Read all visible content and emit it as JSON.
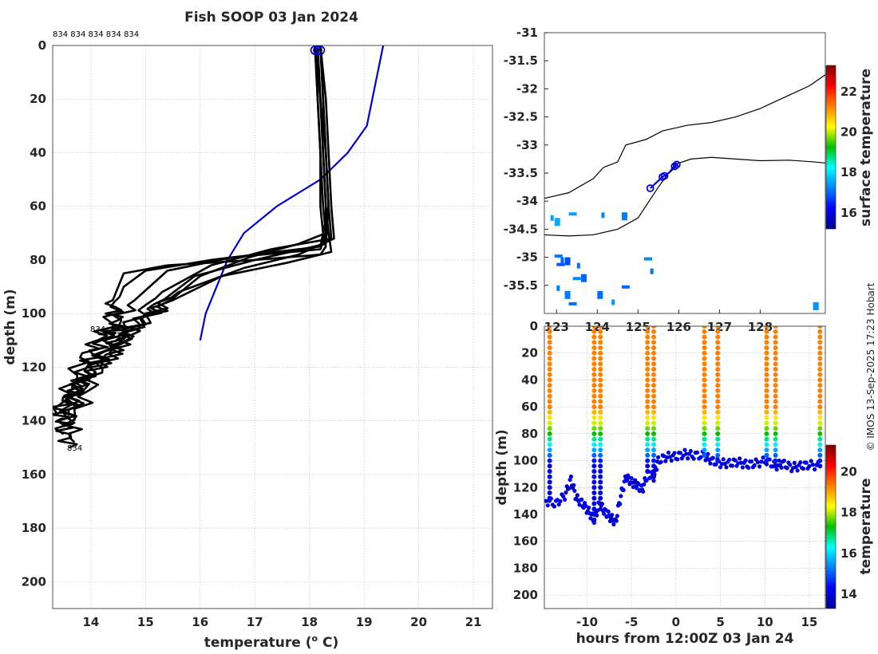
{
  "chart_data": [
    {
      "type": "line",
      "title": "Fish SOOP 03 Jan 2024",
      "xlabel": "temperature (",
      "xlabel_sup": "o",
      "xlabel_end": " C)",
      "ylabel": "depth (m)",
      "xlim": [
        13.3,
        21.35
      ],
      "ylim": [
        210,
        0
      ],
      "xticks": [
        14,
        15,
        16,
        17,
        18,
        19,
        20,
        21
      ],
      "yticks": [
        0,
        20,
        40,
        60,
        80,
        100,
        120,
        140,
        160,
        180,
        200
      ],
      "top_labels": "834 834 834 834 834",
      "profile_labels": [
        "834",
        "834",
        "834"
      ],
      "climatology": {
        "name": "climatology",
        "color": "#0000dd",
        "temp": [
          19.35,
          19.25,
          19.15,
          19.05,
          18.7,
          18.2,
          17.4,
          16.8,
          16.5,
          16.3,
          16.1,
          16.0
        ],
        "depth": [
          0,
          10,
          20,
          30,
          40,
          50,
          60,
          70,
          80,
          90,
          100,
          110
        ]
      },
      "profiles": [
        {
          "temp": [
            18.1,
            18.15,
            18.2,
            18.2,
            18.25,
            18.3,
            18.2,
            17.0,
            15.4,
            14.6,
            14.4,
            14.5,
            14.3
          ],
          "depth": [
            0,
            20,
            40,
            60,
            70,
            75,
            78,
            80,
            82,
            85,
            95,
            105,
            108
          ]
        },
        {
          "temp": [
            18.15,
            18.2,
            18.25,
            18.3,
            18.3,
            18.2,
            16.6,
            15.4,
            14.8,
            14.2,
            13.9,
            13.6,
            13.7
          ],
          "depth": [
            0,
            20,
            40,
            60,
            70,
            76,
            79,
            84,
            95,
            110,
            120,
            135,
            148
          ]
        },
        {
          "temp": [
            18.2,
            18.25,
            18.3,
            18.35,
            18.4,
            17.3,
            16.2,
            15.3,
            14.4,
            13.8,
            13.5,
            13.6
          ],
          "depth": [
            0,
            20,
            40,
            60,
            72,
            76,
            82,
            92,
            110,
            125,
            140,
            150
          ]
        },
        {
          "temp": [
            18.1,
            18.2,
            18.25,
            18.3,
            18.35,
            18.4,
            17.6,
            16.4,
            15.2,
            14.5,
            13.9,
            13.4,
            13.5
          ],
          "depth": [
            0,
            20,
            40,
            60,
            70,
            77,
            81,
            86,
            98,
            112,
            125,
            135,
            142
          ]
        },
        {
          "temp": [
            18.2,
            18.3,
            18.35,
            18.4,
            18.45,
            17.8,
            16.8,
            15.6,
            14.6,
            14.0,
            13.6
          ],
          "depth": [
            0,
            20,
            40,
            60,
            72,
            78,
            83,
            92,
            108,
            120,
            138
          ]
        },
        {
          "temp": [
            18.15,
            18.2,
            18.3,
            18.35,
            18.3,
            17.0,
            15.9,
            15.0,
            14.4,
            13.7,
            13.5
          ],
          "depth": [
            0,
            20,
            40,
            60,
            74,
            80,
            86,
            100,
            115,
            128,
            145
          ]
        },
        {
          "temp": [
            18.2,
            18.25,
            18.3,
            18.35,
            18.2,
            16.2,
            15.0,
            14.6,
            14.3,
            13.8,
            13.4
          ],
          "depth": [
            0,
            20,
            40,
            60,
            75,
            80,
            84,
            90,
            105,
            118,
            138
          ]
        },
        {
          "temp": [
            18.1,
            18.15,
            18.2,
            18.25,
            18.3,
            17.8,
            16.9,
            16.0,
            15.4,
            14.7,
            14.1,
            13.7
          ],
          "depth": [
            0,
            20,
            40,
            60,
            70,
            74,
            79,
            86,
            96,
            108,
            122,
            140
          ]
        }
      ]
    },
    {
      "type": "heatmap",
      "description_legend": "surface temperature",
      "xlim": [
        122.7,
        129.6
      ],
      "ylim": [
        -36.0,
        -31.0
      ],
      "xticks": [
        123,
        124,
        125,
        126,
        127,
        128
      ],
      "yticks": [
        -31,
        -31.5,
        -32,
        -32.5,
        -33,
        -33.5,
        -34,
        -34.5,
        -35,
        -35.5
      ],
      "colorbar_label": "surface temperature",
      "colorbar_ticks": [
        16,
        18,
        20,
        22
      ],
      "colorbar_range": [
        15.2,
        23.3
      ],
      "track": {
        "lon": [
          125.3,
          125.6,
          125.75,
          125.9,
          125.95
        ],
        "lat": [
          -33.77,
          -33.57,
          -33.5,
          -33.4,
          -33.35
        ]
      },
      "track_markers": {
        "lon": [
          125.3,
          125.6,
          125.65,
          125.9,
          125.95
        ],
        "lat": [
          -33.77,
          -33.57,
          -33.55,
          -33.38,
          -33.35
        ]
      },
      "sst_patches": [
        {
          "lon": 122.85,
          "lat": -34.25,
          "t": 17.5
        },
        {
          "lon": 122.95,
          "lat": -34.3,
          "t": 17.6
        },
        {
          "lon": 123.3,
          "lat": -34.2,
          "t": 17.5
        },
        {
          "lon": 124.1,
          "lat": -34.2,
          "t": 17.3
        },
        {
          "lon": 124.6,
          "lat": -34.2,
          "t": 17.2
        },
        {
          "lon": 122.95,
          "lat": -34.95,
          "t": 17.2
        },
        {
          "lon": 123.1,
          "lat": -35.0,
          "t": 17.0
        },
        {
          "lon": 123.2,
          "lat": -35.0,
          "t": 16.8
        },
        {
          "lon": 123.0,
          "lat": -35.1,
          "t": 16.9
        },
        {
          "lon": 123.5,
          "lat": -35.1,
          "t": 17.1
        },
        {
          "lon": 123.6,
          "lat": -35.3,
          "t": 17.0
        },
        {
          "lon": 123.4,
          "lat": -35.35,
          "t": 17.3
        },
        {
          "lon": 123.0,
          "lat": -35.5,
          "t": 17.2
        },
        {
          "lon": 123.2,
          "lat": -35.6,
          "t": 17.2
        },
        {
          "lon": 123.3,
          "lat": -35.8,
          "t": 17.1
        },
        {
          "lon": 124.35,
          "lat": -35.75,
          "t": 17.4
        },
        {
          "lon": 124.0,
          "lat": -35.6,
          "t": 17.1
        },
        {
          "lon": 125.15,
          "lat": -35.0,
          "t": 17.3
        },
        {
          "lon": 125.3,
          "lat": -35.2,
          "t": 17.1
        },
        {
          "lon": 129.3,
          "lat": -35.8,
          "t": 17.4
        },
        {
          "lon": 124.6,
          "lat": -35.5,
          "t": 17.0
        }
      ],
      "coast_north": {
        "lon": [
          122.7,
          123.3,
          123.9,
          124.15,
          124.5,
          124.7,
          125.2,
          125.6,
          126.2,
          126.8,
          127.4,
          128.0,
          128.6,
          129.2,
          129.6
        ],
        "lat": [
          -33.95,
          -33.85,
          -33.6,
          -33.4,
          -33.3,
          -33.0,
          -32.9,
          -32.75,
          -32.65,
          -32.6,
          -32.5,
          -32.35,
          -32.15,
          -31.95,
          -31.75
        ]
      },
      "coast_south": {
        "lon": [
          122.7,
          123.3,
          123.9,
          124.5,
          125.0,
          125.5,
          125.9,
          126.3,
          126.8,
          127.4,
          128.0,
          128.7,
          129.3,
          129.6
        ],
        "lat": [
          -34.6,
          -34.62,
          -34.6,
          -34.5,
          -34.3,
          -33.75,
          -33.35,
          -33.25,
          -33.22,
          -33.25,
          -33.28,
          -33.27,
          -33.3,
          -33.32
        ]
      }
    },
    {
      "type": "scatter",
      "xlabel": "hours from 12:00Z 03 Jan 24",
      "ylabel": "depth (m)",
      "xlim": [
        -14.8,
        16.8
      ],
      "ylim": [
        210,
        0
      ],
      "xticks": [
        -10,
        -5,
        0,
        5,
        10,
        15
      ],
      "yticks": [
        0,
        20,
        40,
        60,
        80,
        100,
        120,
        140,
        160,
        180,
        200
      ],
      "colorbar_label": "temperature",
      "colorbar_ticks": [
        14,
        16,
        18,
        20
      ],
      "colorbar_range": [
        13.3,
        21.3
      ],
      "casts_hours": [
        -14.2,
        -9.2,
        -8.5,
        -3.2,
        -2.5,
        3.2,
        4.7,
        10.2,
        11.2,
        16.2
      ],
      "seafloor": {
        "hours": [
          -14.6,
          -13.5,
          -12.5,
          -11.8,
          -11.2,
          -10.5,
          -9.8,
          -9.2,
          -8.6,
          -8.0,
          -7.4,
          -6.8,
          -6.2,
          -5.6,
          -5.0,
          -4.4,
          -3.8,
          -3.2,
          -2.5,
          -2.0,
          -1.0,
          0.0,
          1.0,
          2.0,
          3.2,
          4.0,
          5.0,
          6.0,
          7.0,
          8.0,
          9.0,
          10.2,
          11.2,
          12.0,
          13.0,
          14.0,
          15.0,
          16.2
        ],
        "depth": [
          130,
          132,
          126,
          114,
          128,
          132,
          138,
          144,
          132,
          138,
          142,
          146,
          126,
          112,
          116,
          118,
          122,
          110,
          112,
          100,
          97,
          97,
          95,
          96,
          96,
          100,
          102,
          102,
          101,
          103,
          102,
          100,
          104,
          102,
          105,
          104,
          103,
          104
        ]
      }
    }
  ],
  "watermark": "© IMOS 13-Sep-2025 17:23 Hobart"
}
